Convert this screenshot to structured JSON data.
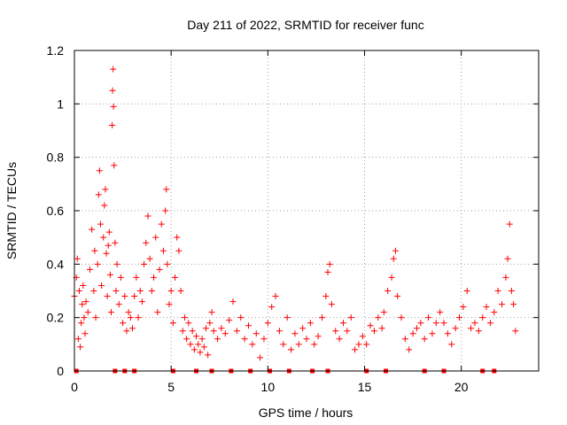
{
  "chart_data": {
    "type": "scatter",
    "title": "Day 211 of 2022, SRMTID for receiver func",
    "xlabel": "GPS time / hours",
    "ylabel": "SRMTID / TECUs",
    "xlim": [
      0,
      24
    ],
    "ylim": [
      0,
      1.2
    ],
    "xticks": [
      0,
      5,
      10,
      15,
      20
    ],
    "xtick_labels": [
      "0",
      "5",
      "10",
      "15",
      "20"
    ],
    "yticks": [
      0,
      0.2,
      0.4,
      0.6,
      0.8,
      1.0,
      1.2
    ],
    "ytick_labels": [
      "0",
      "0.2",
      "0.4",
      "0.6",
      "0.8",
      "1",
      "1.2"
    ],
    "grid": true,
    "marker": "+",
    "series": [
      {
        "name": "SRMTID",
        "color": "#ff0000",
        "points": [
          [
            0.0,
            0.28
          ],
          [
            0.1,
            0.35
          ],
          [
            0.15,
            0.42
          ],
          [
            0.2,
            0.12
          ],
          [
            0.25,
            0.3
          ],
          [
            0.3,
            0.09
          ],
          [
            0.35,
            0.18
          ],
          [
            0.4,
            0.25
          ],
          [
            0.45,
            0.32
          ],
          [
            0.5,
            0.2
          ],
          [
            0.55,
            0.14
          ],
          [
            0.6,
            0.26
          ],
          [
            0.7,
            0.22
          ],
          [
            0.8,
            0.38
          ],
          [
            0.9,
            0.53
          ],
          [
            1.0,
            0.3
          ],
          [
            1.05,
            0.45
          ],
          [
            1.1,
            0.2
          ],
          [
            1.2,
            0.4
          ],
          [
            1.25,
            0.66
          ],
          [
            1.3,
            0.75
          ],
          [
            1.35,
            0.55
          ],
          [
            1.4,
            0.32
          ],
          [
            1.5,
            0.5
          ],
          [
            1.55,
            0.62
          ],
          [
            1.6,
            0.68
          ],
          [
            1.65,
            0.44
          ],
          [
            1.7,
            0.28
          ],
          [
            1.75,
            0.47
          ],
          [
            1.8,
            0.52
          ],
          [
            1.85,
            0.36
          ],
          [
            1.9,
            0.22
          ],
          [
            1.95,
            0.92
          ],
          [
            1.97,
            1.05
          ],
          [
            2.0,
            1.13
          ],
          [
            2.02,
            0.99
          ],
          [
            2.05,
            0.77
          ],
          [
            2.1,
            0.48
          ],
          [
            2.15,
            0.3
          ],
          [
            2.2,
            0.4
          ],
          [
            2.3,
            0.25
          ],
          [
            2.4,
            0.35
          ],
          [
            2.5,
            0.18
          ],
          [
            2.6,
            0.28
          ],
          [
            2.7,
            0.15
          ],
          [
            2.8,
            0.22
          ],
          [
            2.9,
            0.2
          ],
          [
            3.0,
            0.16
          ],
          [
            3.1,
            0.28
          ],
          [
            3.2,
            0.35
          ],
          [
            3.3,
            0.2
          ],
          [
            3.4,
            0.3
          ],
          [
            3.5,
            0.26
          ],
          [
            3.6,
            0.4
          ],
          [
            3.7,
            0.48
          ],
          [
            3.8,
            0.58
          ],
          [
            3.9,
            0.42
          ],
          [
            4.0,
            0.3
          ],
          [
            4.1,
            0.35
          ],
          [
            4.2,
            0.5
          ],
          [
            4.3,
            0.22
          ],
          [
            4.4,
            0.38
          ],
          [
            4.5,
            0.55
          ],
          [
            4.6,
            0.45
          ],
          [
            4.7,
            0.6
          ],
          [
            4.75,
            0.68
          ],
          [
            4.8,
            0.4
          ],
          [
            4.9,
            0.25
          ],
          [
            5.0,
            0.3
          ],
          [
            5.1,
            0.18
          ],
          [
            5.2,
            0.35
          ],
          [
            5.3,
            0.5
          ],
          [
            5.4,
            0.45
          ],
          [
            5.5,
            0.3
          ],
          [
            5.6,
            0.15
          ],
          [
            5.7,
            0.2
          ],
          [
            5.8,
            0.12
          ],
          [
            5.9,
            0.18
          ],
          [
            6.0,
            0.1
          ],
          [
            6.1,
            0.15
          ],
          [
            6.2,
            0.08
          ],
          [
            6.3,
            0.13
          ],
          [
            6.4,
            0.1
          ],
          [
            6.5,
            0.07
          ],
          [
            6.6,
            0.12
          ],
          [
            6.7,
            0.09
          ],
          [
            6.8,
            0.16
          ],
          [
            6.9,
            0.06
          ],
          [
            7.0,
            0.18
          ],
          [
            7.1,
            0.22
          ],
          [
            7.2,
            0.15
          ],
          [
            7.4,
            0.12
          ],
          [
            7.6,
            0.16
          ],
          [
            7.8,
            0.14
          ],
          [
            8.0,
            0.19
          ],
          [
            8.2,
            0.26
          ],
          [
            8.4,
            0.15
          ],
          [
            8.6,
            0.2
          ],
          [
            8.8,
            0.12
          ],
          [
            9.0,
            0.17
          ],
          [
            9.2,
            0.1
          ],
          [
            9.4,
            0.14
          ],
          [
            9.6,
            0.05
          ],
          [
            9.8,
            0.12
          ],
          [
            10.0,
            0.18
          ],
          [
            10.2,
            0.24
          ],
          [
            10.4,
            0.28
          ],
          [
            10.6,
            0.15
          ],
          [
            10.8,
            0.1
          ],
          [
            11.0,
            0.2
          ],
          [
            11.2,
            0.08
          ],
          [
            11.4,
            0.14
          ],
          [
            11.6,
            0.1
          ],
          [
            11.8,
            0.16
          ],
          [
            12.0,
            0.12
          ],
          [
            12.2,
            0.18
          ],
          [
            12.4,
            0.1
          ],
          [
            12.6,
            0.13
          ],
          [
            12.8,
            0.2
          ],
          [
            13.0,
            0.28
          ],
          [
            13.1,
            0.37
          ],
          [
            13.2,
            0.4
          ],
          [
            13.3,
            0.25
          ],
          [
            13.5,
            0.15
          ],
          [
            13.7,
            0.12
          ],
          [
            13.9,
            0.18
          ],
          [
            14.1,
            0.15
          ],
          [
            14.3,
            0.2
          ],
          [
            14.5,
            0.08
          ],
          [
            14.7,
            0.1
          ],
          [
            14.9,
            0.13
          ],
          [
            15.1,
            0.1
          ],
          [
            15.3,
            0.17
          ],
          [
            15.5,
            0.15
          ],
          [
            15.7,
            0.2
          ],
          [
            15.9,
            0.16
          ],
          [
            16.0,
            0.22
          ],
          [
            16.2,
            0.3
          ],
          [
            16.4,
            0.35
          ],
          [
            16.5,
            0.42
          ],
          [
            16.6,
            0.45
          ],
          [
            16.7,
            0.28
          ],
          [
            16.9,
            0.2
          ],
          [
            17.1,
            0.12
          ],
          [
            17.3,
            0.08
          ],
          [
            17.5,
            0.14
          ],
          [
            17.7,
            0.16
          ],
          [
            17.9,
            0.18
          ],
          [
            18.1,
            0.12
          ],
          [
            18.3,
            0.2
          ],
          [
            18.5,
            0.14
          ],
          [
            18.7,
            0.18
          ],
          [
            18.9,
            0.22
          ],
          [
            19.1,
            0.18
          ],
          [
            19.3,
            0.14
          ],
          [
            19.5,
            0.1
          ],
          [
            19.7,
            0.16
          ],
          [
            19.9,
            0.2
          ],
          [
            20.1,
            0.24
          ],
          [
            20.3,
            0.3
          ],
          [
            20.5,
            0.16
          ],
          [
            20.7,
            0.18
          ],
          [
            20.9,
            0.15
          ],
          [
            21.1,
            0.2
          ],
          [
            21.3,
            0.24
          ],
          [
            21.5,
            0.18
          ],
          [
            21.7,
            0.22
          ],
          [
            21.9,
            0.3
          ],
          [
            22.1,
            0.25
          ],
          [
            22.3,
            0.35
          ],
          [
            22.4,
            0.42
          ],
          [
            22.5,
            0.55
          ],
          [
            22.6,
            0.3
          ],
          [
            22.7,
            0.25
          ],
          [
            22.8,
            0.15
          ]
        ]
      }
    ],
    "baseline_markers": {
      "y": 0,
      "x": [
        0.1,
        2.1,
        2.6,
        3.1,
        5.1,
        6.3,
        7.1,
        8.1,
        9.1,
        10.1,
        11.1,
        12.3,
        13.1,
        15.1,
        16.1,
        18.1,
        19.1,
        21.1,
        21.7
      ]
    }
  }
}
